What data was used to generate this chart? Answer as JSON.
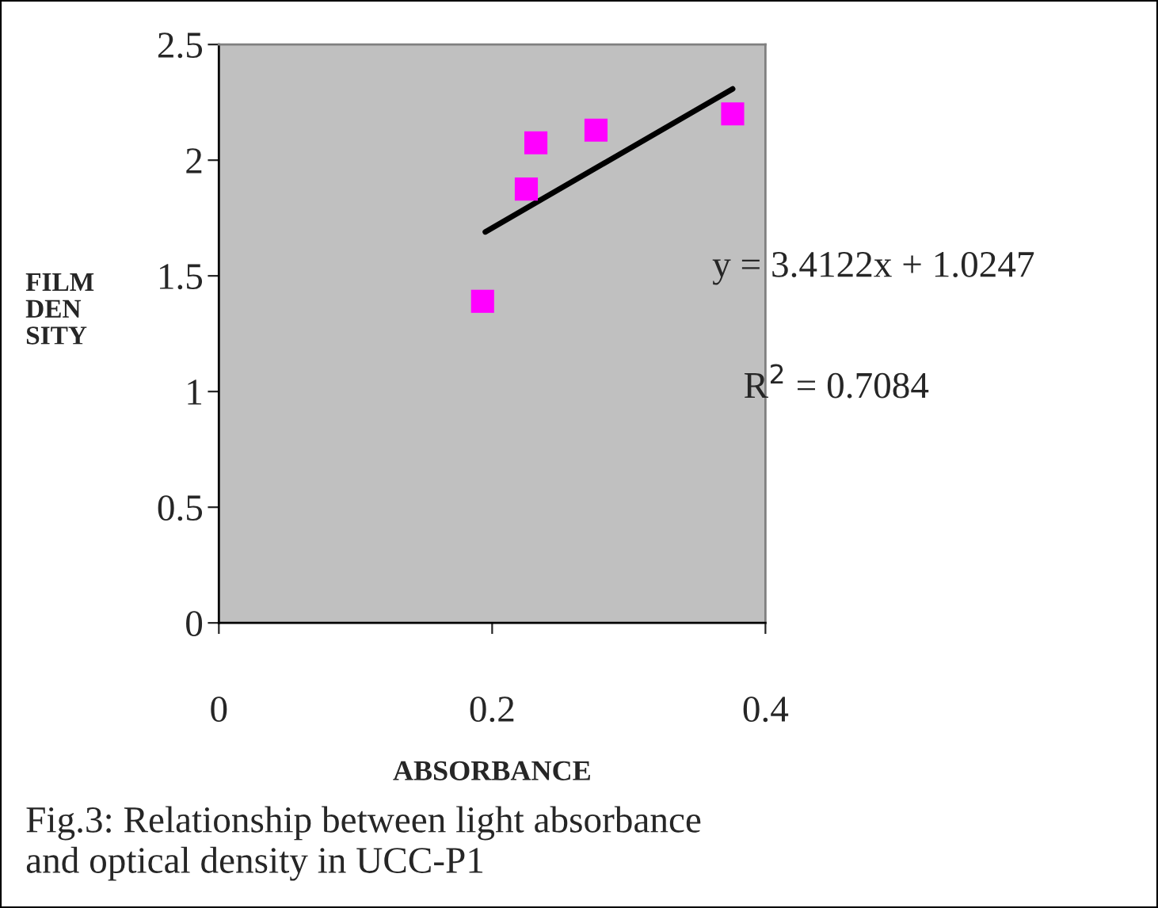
{
  "chart_data": {
    "type": "scatter",
    "xlabel": "ABSORBANCE",
    "ylabel": "FILM\nDEN\nSITY",
    "series": [
      {
        "marker": "square",
        "color": "#ff00ff",
        "x": [
          0.193,
          0.225,
          0.232,
          0.276,
          0.376
        ],
        "values": [
          1.39,
          1.875,
          2.075,
          2.13,
          2.2
        ]
      },
      {
        "type": "line",
        "color": "#000000",
        "x": [
          0.195,
          0.376
        ],
        "values": [
          1.69,
          2.308
        ]
      }
    ],
    "xlim": [
      0,
      0.4
    ],
    "xticks": [
      0,
      0.2,
      0.4
    ],
    "ylim": [
      0,
      2.5
    ],
    "yticks": [
      0,
      0.5,
      1,
      1.5,
      2,
      2.5
    ],
    "annotations": [
      "y = 3.4122x + 1.0247",
      "R$^{2}$ = 0.7084",
      "Fig.3: Relationship between light absorbance\nand optical density in UCC-P1"
    ]
  }
}
